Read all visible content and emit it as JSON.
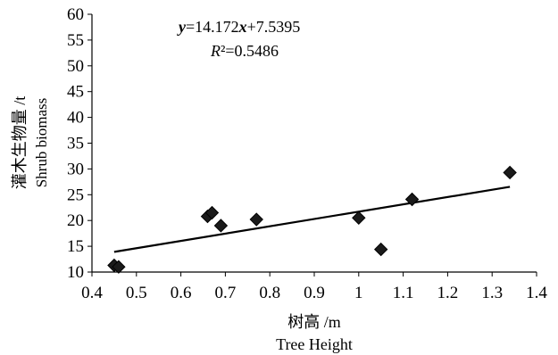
{
  "chart_data": {
    "type": "scatter",
    "title": "",
    "xlabel_cn": "树高 /m",
    "xlabel_en": "Tree Height",
    "ylabel_cn": "灌木生物量 /t",
    "ylabel_en": "Shrub biomass",
    "xlim": [
      0.4,
      1.4
    ],
    "ylim": [
      10,
      60
    ],
    "x_ticks": [
      "0.4",
      "0.5",
      "0.6",
      "0.7",
      "0.8",
      "0.9",
      "1",
      "1.1",
      "1.2",
      "1.3",
      "1.4"
    ],
    "y_ticks": [
      "10",
      "15",
      "20",
      "25",
      "30",
      "35",
      "40",
      "45",
      "50",
      "55",
      "60"
    ],
    "grid": false,
    "legend": "none",
    "marker": "diamond",
    "marker_color": "#1a1a1a",
    "line_color": "#000000",
    "series": [
      {
        "points": [
          {
            "x": 0.45,
            "y": 11.3
          },
          {
            "x": 0.46,
            "y": 11.0
          },
          {
            "x": 0.66,
            "y": 20.8
          },
          {
            "x": 0.67,
            "y": 21.5
          },
          {
            "x": 0.69,
            "y": 19.0
          },
          {
            "x": 0.77,
            "y": 20.2
          },
          {
            "x": 1.0,
            "y": 20.5
          },
          {
            "x": 1.05,
            "y": 14.4
          },
          {
            "x": 1.12,
            "y": 24.1
          },
          {
            "x": 1.34,
            "y": 29.3
          }
        ]
      }
    ],
    "trendline": {
      "slope": 14.172,
      "intercept": 7.5395,
      "x_range": [
        0.45,
        1.34
      ],
      "equation_text": "y=14.172x+7.5395",
      "r2_text": "R²=0.5486"
    }
  }
}
